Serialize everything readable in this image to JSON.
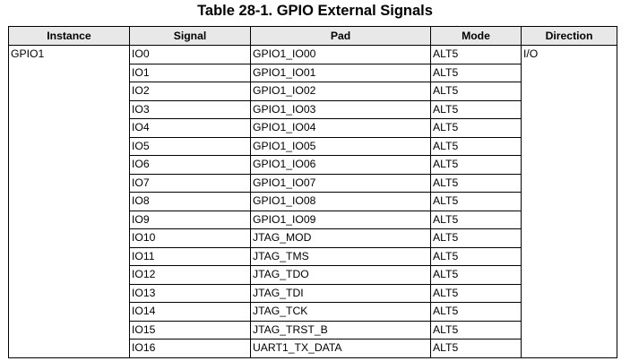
{
  "caption": "Table 28-1.  GPIO External Signals",
  "headers": {
    "instance": "Instance",
    "signal": "Signal",
    "pad": "Pad",
    "mode": "Mode",
    "direction": "Direction"
  },
  "instance": "GPIO1",
  "direction": "I/O",
  "rows": [
    {
      "signal": "IO0",
      "pad": "GPIO1_IO00",
      "mode": "ALT5"
    },
    {
      "signal": "IO1",
      "pad": "GPIO1_IO01",
      "mode": "ALT5"
    },
    {
      "signal": "IO2",
      "pad": "GPIO1_IO02",
      "mode": "ALT5"
    },
    {
      "signal": "IO3",
      "pad": "GPIO1_IO03",
      "mode": "ALT5"
    },
    {
      "signal": "IO4",
      "pad": "GPIO1_IO04",
      "mode": "ALT5"
    },
    {
      "signal": "IO5",
      "pad": "GPIO1_IO05",
      "mode": "ALT5"
    },
    {
      "signal": "IO6",
      "pad": "GPIO1_IO06",
      "mode": "ALT5"
    },
    {
      "signal": "IO7",
      "pad": "GPIO1_IO07",
      "mode": "ALT5"
    },
    {
      "signal": "IO8",
      "pad": "GPIO1_IO08",
      "mode": "ALT5"
    },
    {
      "signal": "IO9",
      "pad": "GPIO1_IO09",
      "mode": "ALT5"
    },
    {
      "signal": "IO10",
      "pad": "JTAG_MOD",
      "mode": "ALT5"
    },
    {
      "signal": "IO11",
      "pad": "JTAG_TMS",
      "mode": "ALT5"
    },
    {
      "signal": "IO12",
      "pad": "JTAG_TDO",
      "mode": "ALT5"
    },
    {
      "signal": "IO13",
      "pad": "JTAG_TDI",
      "mode": "ALT5"
    },
    {
      "signal": "IO14",
      "pad": "JTAG_TCK",
      "mode": "ALT5"
    },
    {
      "signal": "IO15",
      "pad": "JTAG_TRST_B",
      "mode": "ALT5"
    },
    {
      "signal": "IO16",
      "pad": "UART1_TX_DATA",
      "mode": "ALT5"
    }
  ]
}
